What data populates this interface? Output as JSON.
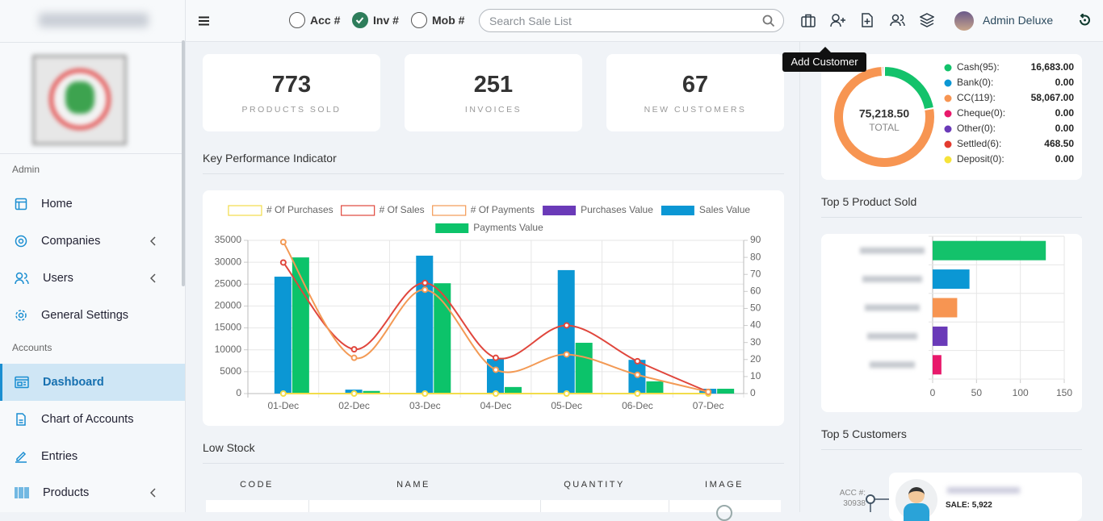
{
  "sidebar": {
    "sections": [
      {
        "title": "Admin",
        "items": [
          "Home",
          "Companies",
          "Users",
          "General Settings"
        ]
      },
      {
        "title": "Accounts",
        "items": [
          "Dashboard",
          "Chart of Accounts",
          "Entries",
          "Products"
        ]
      }
    ],
    "active": {
      "section": 1,
      "item": 0
    }
  },
  "topbar": {
    "search_by": [
      "Acc #",
      "Inv #",
      "Mob #"
    ],
    "selected": 1,
    "search_placeholder": "Search Sale List",
    "tooltip": "Add Customer",
    "user": "Admin Deluxe"
  },
  "stats": [
    {
      "value": 773,
      "label": "PRODUCTS SOLD"
    },
    {
      "value": 251,
      "label": "INVOICES"
    },
    {
      "value": 67,
      "label": "NEW CUSTOMERS"
    }
  ],
  "low_stock": {
    "title": "Low Stock",
    "columns": [
      "CODE",
      "NAME",
      "QUANTITY",
      "IMAGE"
    ]
  },
  "top_customers": {
    "title": "Top 5 Customers",
    "items": [
      {
        "acc_label": "ACC #:",
        "acc": 30938,
        "sale": "SALE: 5,922"
      }
    ]
  },
  "chart_data": [
    {
      "type": "combo",
      "title": "Key Performance Indicator",
      "categories": [
        "01-Dec",
        "02-Dec",
        "03-Dec",
        "04-Dec",
        "05-Dec",
        "06-Dec",
        "07-Dec"
      ],
      "ylim": [
        0,
        35000
      ],
      "yticks": [
        0,
        5000,
        10000,
        15000,
        20000,
        25000,
        30000,
        35000
      ],
      "y2lim": [
        0,
        90
      ],
      "y2ticks": [
        0,
        10,
        20,
        30,
        40,
        50,
        60,
        70,
        80,
        90
      ],
      "grid": true,
      "series": [
        {
          "name": "# Of Purchases",
          "type": "line",
          "axis": "y2",
          "color": "#f2dc4a",
          "values": [
            0,
            0,
            0,
            0,
            0,
            0,
            0
          ]
        },
        {
          "name": "# Of Sales",
          "type": "line",
          "axis": "y2",
          "color": "#e0463c",
          "values": [
            77,
            26,
            65,
            21,
            40,
            19,
            1
          ]
        },
        {
          "name": "# Of Payments",
          "type": "line",
          "axis": "y2",
          "color": "#f39a55",
          "values": [
            89,
            21,
            61,
            14,
            23,
            11,
            1
          ]
        },
        {
          "name": "Purchases Value",
          "type": "bar",
          "color": "#6a3ab8",
          "values": [
            0,
            0,
            0,
            0,
            0,
            0,
            0
          ]
        },
        {
          "name": "Sales Value",
          "type": "bar",
          "color": "#0b97d4",
          "values": [
            26700,
            900,
            31500,
            7900,
            28200,
            7700,
            1100
          ]
        },
        {
          "name": "Payments Value",
          "type": "bar",
          "color": "#0cc36a",
          "values": [
            31100,
            600,
            25200,
            1500,
            11600,
            2800,
            1100
          ]
        }
      ]
    },
    {
      "type": "donut",
      "center_text": "75,218.50",
      "center_label": "TOTAL",
      "categories": [
        "Cash(95):",
        "Bank(0):",
        "CC(119):",
        "Cheque(0):",
        "Other(0):",
        "Settled(6):",
        "Deposit(0):"
      ],
      "values": [
        16683,
        0,
        58067,
        0,
        0,
        468.5,
        0
      ],
      "value_labels": [
        "16,683.00",
        "0.00",
        "58,067.00",
        "0.00",
        "0.00",
        "468.50",
        "0.00"
      ],
      "colors": [
        "#13c26b",
        "#0b97d4",
        "#f79552",
        "#e8196b",
        "#6a3ab8",
        "#e33b2f",
        "#f6e33a"
      ]
    },
    {
      "type": "hbar",
      "title": "Top 5 Product Sold",
      "categories": [
        null,
        null,
        null,
        null,
        null
      ],
      "values": [
        129,
        42,
        28,
        17,
        10
      ],
      "colors": [
        "#13c26b",
        "#0b97d4",
        "#f79552",
        "#6a3ab8",
        "#e8196b"
      ],
      "xlim": [
        0,
        150
      ],
      "xticks": [
        0,
        50,
        100,
        150
      ],
      "grid": true
    }
  ]
}
